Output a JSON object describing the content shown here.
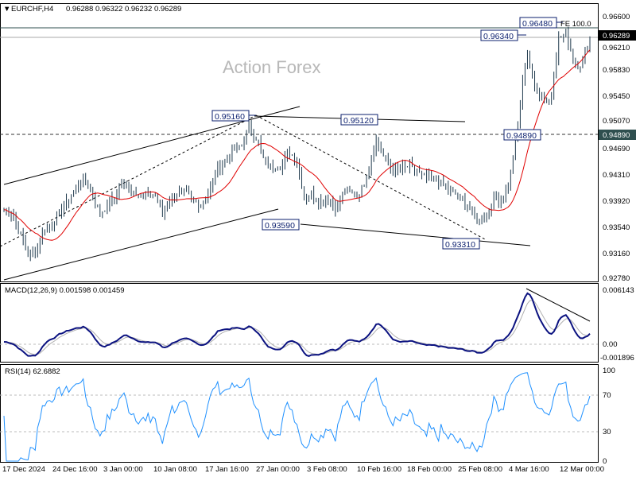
{
  "header": {
    "symbol": "EURCHF,H4",
    "ohlc": "0.96288 0.96322 0.96232 0.96289"
  },
  "watermark": "Action Forex",
  "annotations": {
    "l1": "0.95160",
    "l2": "0.95120",
    "l3": "0.93590",
    "l4": "0.93310",
    "l5": "0.94890",
    "l6": "0.96340",
    "l7": "0.96480",
    "fe": "FE 100.0"
  },
  "price_axis": {
    "ticks": [
      "0.96600",
      "0.96210",
      "0.95830",
      "0.95450",
      "0.95070",
      "0.94690",
      "0.94310",
      "0.93920",
      "0.93540",
      "0.93160",
      "0.92780"
    ],
    "current": "0.96289",
    "level": "0.94890"
  },
  "macd": {
    "label": "MACD(12,26,9) 0.001598 0.001459",
    "ticks": [
      "0.006143",
      "0.00",
      "-0.001896"
    ]
  },
  "rsi": {
    "label": "RSI(14) 62.6882",
    "ticks": [
      "100",
      "70",
      "30",
      "0"
    ]
  },
  "time_axis": [
    "17 Dec 2024",
    "24 Dec 16:00",
    "3 Jan 00:00",
    "10 Jan 08:00",
    "17 Jan 16:00",
    "27 Jan 00:00",
    "3 Feb 08:00",
    "10 Feb 16:00",
    "18 Feb 00:00",
    "25 Feb 08:00",
    "4 Mar 16:00",
    "12 Mar 00:00"
  ],
  "colors": {
    "bars": "#1f3a4d",
    "ma": "#e00000",
    "macd": "#0b1280",
    "signal": "#b0b0b0",
    "rsi": "#1e90ff"
  },
  "chart_data": {
    "type": "bar",
    "title": "EURCHF,H4",
    "ylim": [
      0.9278,
      0.966
    ],
    "closes": [
      0.938,
      0.9374,
      0.9345,
      0.9317,
      0.9317,
      0.9351,
      0.9357,
      0.9374,
      0.9391,
      0.9409,
      0.9426,
      0.9409,
      0.9374,
      0.9386,
      0.9397,
      0.942,
      0.9409,
      0.9403,
      0.9397,
      0.9403,
      0.9374,
      0.9397,
      0.9403,
      0.9403,
      0.9391,
      0.9386,
      0.9409,
      0.9443,
      0.9449,
      0.9466,
      0.9472,
      0.95,
      0.9483,
      0.9443,
      0.9443,
      0.9443,
      0.9466,
      0.9449,
      0.9397,
      0.9403,
      0.9391,
      0.9397,
      0.938,
      0.9409,
      0.9403,
      0.9403,
      0.9437,
      0.9483,
      0.9455,
      0.9437,
      0.9437,
      0.9443,
      0.9437,
      0.9426,
      0.9426,
      0.942,
      0.9409,
      0.9403,
      0.9391,
      0.938,
      0.9363,
      0.9374,
      0.9397,
      0.9391,
      0.9432,
      0.9512,
      0.9615,
      0.9558,
      0.9546,
      0.9535,
      0.9627,
      0.9638,
      0.9592,
      0.9592,
      0.9629
    ]
  }
}
